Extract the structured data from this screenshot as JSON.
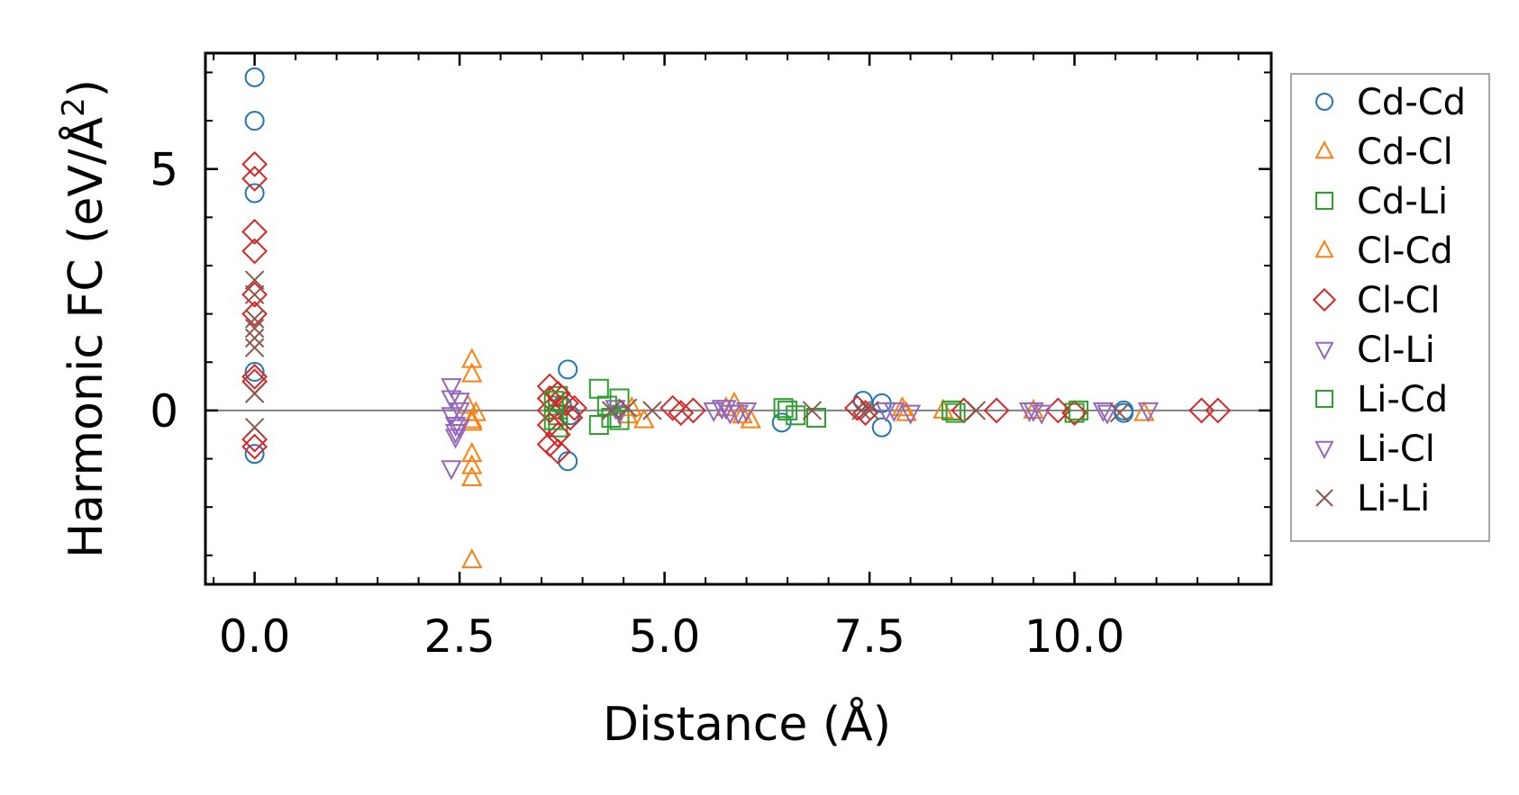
{
  "chart_data": {
    "type": "scatter",
    "title": "",
    "xlabel": "Distance (Å)",
    "ylabel_prefix": "Harmonic FC (eV/Å",
    "ylabel_sup": "2",
    "ylabel_suffix": ")",
    "xlim": [
      -0.6,
      12.4
    ],
    "ylim": [
      -3.6,
      7.4
    ],
    "xticks": [
      0.0,
      2.5,
      5.0,
      7.5,
      10.0
    ],
    "xtick_labels": [
      "0.0",
      "2.5",
      "5.0",
      "7.5",
      "10.0"
    ],
    "yticks": [
      0,
      5
    ],
    "ytick_labels": [
      "0",
      "5"
    ],
    "xminor_step": 0.5,
    "yminor_step": 1,
    "zero_line": true,
    "legend_position": "outside-right",
    "series": [
      {
        "name": "Cd-Cd",
        "marker": "circle",
        "color": "#1f77b4",
        "points": [
          [
            0,
            6.9
          ],
          [
            0,
            6.0
          ],
          [
            0,
            4.5
          ],
          [
            0,
            0.8
          ],
          [
            0,
            -0.9
          ],
          [
            3.82,
            0.85
          ],
          [
            3.82,
            -1.05
          ],
          [
            3.75,
            0.1
          ],
          [
            3.85,
            -0.1
          ],
          [
            6.43,
            -0.25
          ],
          [
            7.42,
            0.2
          ],
          [
            7.65,
            0.15
          ],
          [
            7.65,
            -0.35
          ],
          [
            10.6,
            0.0
          ],
          [
            10.6,
            -0.05
          ]
        ]
      },
      {
        "name": "Cd-Cl",
        "marker": "triangle-up",
        "color": "#ff7f0e",
        "points": [
          [
            2.65,
            1.05
          ],
          [
            2.65,
            0.75
          ],
          [
            2.65,
            -0.2
          ],
          [
            2.65,
            -0.25
          ],
          [
            2.65,
            -0.9
          ],
          [
            2.65,
            -1.15
          ],
          [
            2.65,
            -1.4
          ],
          [
            2.65,
            -3.1
          ],
          [
            4.55,
            -0.1
          ],
          [
            4.75,
            -0.2
          ],
          [
            5.85,
            0.15
          ],
          [
            5.95,
            -0.1
          ],
          [
            6.05,
            -0.2
          ],
          [
            7.9,
            0.05
          ],
          [
            8.4,
            0.0
          ],
          [
            10.85,
            -0.05
          ]
        ]
      },
      {
        "name": "Cd-Li",
        "marker": "square",
        "color": "#2ca02c",
        "points": [
          [
            3.7,
            0.3
          ],
          [
            3.7,
            0.1
          ],
          [
            3.7,
            -0.1
          ],
          [
            3.7,
            -0.35
          ],
          [
            4.2,
            0.45
          ],
          [
            4.2,
            -0.3
          ],
          [
            4.45,
            0.25
          ],
          [
            4.45,
            -0.2
          ],
          [
            6.45,
            0.05
          ],
          [
            6.6,
            -0.1
          ],
          [
            6.85,
            -0.15
          ],
          [
            8.5,
            0.0
          ],
          [
            10.0,
            -0.05
          ]
        ]
      },
      {
        "name": "Cl-Cd",
        "marker": "triangle-up",
        "color": "#ff7f0e",
        "points": [
          [
            2.6,
            0.1
          ],
          [
            2.7,
            -0.05
          ],
          [
            4.6,
            0.05
          ],
          [
            5.75,
            0.05
          ],
          [
            7.95,
            -0.05
          ],
          [
            9.5,
            0.0
          ]
        ]
      },
      {
        "name": "Cl-Cl",
        "marker": "diamond",
        "color": "#d62728",
        "points": [
          [
            0,
            5.1
          ],
          [
            0,
            4.8
          ],
          [
            0,
            3.7
          ],
          [
            0,
            3.3
          ],
          [
            0,
            2.4
          ],
          [
            0,
            2.0
          ],
          [
            0,
            0.7
          ],
          [
            0,
            0.6
          ],
          [
            0,
            -0.6
          ],
          [
            0,
            -0.75
          ],
          [
            3.6,
            0.5
          ],
          [
            3.6,
            0.25
          ],
          [
            3.6,
            0.0
          ],
          [
            3.6,
            -0.3
          ],
          [
            3.6,
            -0.7
          ],
          [
            3.7,
            0.35
          ],
          [
            3.7,
            -0.5
          ],
          [
            3.8,
            0.15
          ],
          [
            3.85,
            -0.15
          ],
          [
            3.9,
            0.05
          ],
          [
            3.7,
            -0.85
          ],
          [
            5.1,
            0.05
          ],
          [
            5.2,
            -0.05
          ],
          [
            5.35,
            0.0
          ],
          [
            7.35,
            0.05
          ],
          [
            7.45,
            -0.05
          ],
          [
            8.65,
            0.0
          ],
          [
            9.05,
            0.0
          ],
          [
            9.8,
            0.0
          ],
          [
            10.0,
            -0.05
          ],
          [
            11.55,
            0.0
          ],
          [
            11.75,
            0.0
          ]
        ]
      },
      {
        "name": "Cl-Li",
        "marker": "triangle-down",
        "color": "#9467bd",
        "points": [
          [
            2.4,
            0.5
          ],
          [
            2.4,
            0.25
          ],
          [
            2.4,
            -0.1
          ],
          [
            2.45,
            -0.3
          ],
          [
            2.45,
            -0.55
          ],
          [
            2.5,
            0.0
          ],
          [
            2.4,
            -1.2
          ],
          [
            4.4,
            0.05
          ],
          [
            5.6,
            0.0
          ],
          [
            5.75,
            0.05
          ],
          [
            5.9,
            -0.05
          ],
          [
            6.0,
            0.0
          ],
          [
            7.8,
            0.0
          ],
          [
            8.0,
            -0.05
          ],
          [
            9.45,
            0.0
          ],
          [
            9.6,
            -0.05
          ],
          [
            10.35,
            0.0
          ],
          [
            10.9,
            0.0
          ]
        ]
      },
      {
        "name": "Li-Cd",
        "marker": "square",
        "color": "#2ca02c",
        "points": [
          [
            3.65,
            0.2
          ],
          [
            3.65,
            -0.2
          ],
          [
            4.3,
            0.1
          ],
          [
            4.35,
            -0.15
          ],
          [
            6.5,
            0.0
          ],
          [
            8.55,
            -0.05
          ],
          [
            10.05,
            0.0
          ]
        ]
      },
      {
        "name": "Li-Cl",
        "marker": "triangle-down",
        "color": "#9467bd",
        "points": [
          [
            2.5,
            0.2
          ],
          [
            2.5,
            -0.35
          ],
          [
            2.45,
            -0.45
          ],
          [
            4.45,
            -0.05
          ],
          [
            5.7,
            0.05
          ],
          [
            5.8,
            -0.05
          ],
          [
            7.7,
            0.0
          ],
          [
            9.5,
            0.0
          ],
          [
            10.4,
            -0.05
          ]
        ]
      },
      {
        "name": "Li-Li",
        "marker": "x",
        "color": "#8c564b",
        "points": [
          [
            0,
            2.7
          ],
          [
            0,
            2.4
          ],
          [
            0,
            1.9
          ],
          [
            0,
            1.7
          ],
          [
            0,
            1.5
          ],
          [
            0,
            1.3
          ],
          [
            0,
            0.35
          ],
          [
            0,
            -0.35
          ],
          [
            4.35,
            0.0
          ],
          [
            4.55,
            0.05
          ],
          [
            4.85,
            0.0
          ],
          [
            6.8,
            0.0
          ],
          [
            7.4,
            0.0
          ],
          [
            7.5,
            0.0
          ],
          [
            8.8,
            0.0
          ],
          [
            10.55,
            -0.05
          ]
        ]
      }
    ]
  }
}
